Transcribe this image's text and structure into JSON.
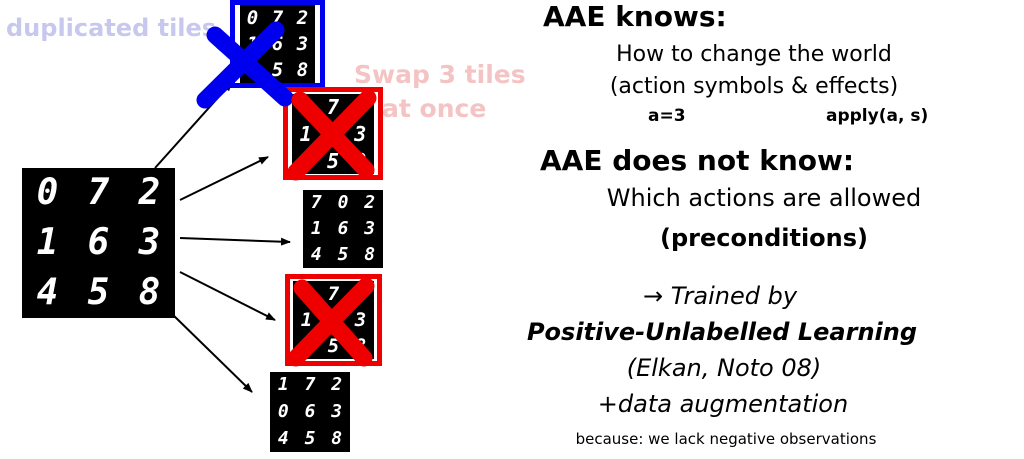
{
  "labels": {
    "duplicated": "duplicated tiles",
    "swap_line1": "Swap 3 tiles",
    "swap_line2": "at once"
  },
  "tiles": {
    "source": [
      "0",
      "7",
      "2",
      "1",
      "6",
      "3",
      "4",
      "5",
      "8"
    ],
    "dup": [
      "0",
      "7",
      "2",
      "1",
      "6",
      "3",
      "4",
      "5",
      "8"
    ],
    "swap": [
      "0",
      "7",
      "2",
      "1",
      "6",
      "3",
      "4",
      "5",
      "8"
    ],
    "valid1": [
      "7",
      "0",
      "2",
      "1",
      "6",
      "3",
      "4",
      "5",
      "8"
    ],
    "invalid2": [
      "0",
      "7",
      "2",
      "1",
      "6",
      "3",
      "4",
      "5",
      "8"
    ],
    "valid2": [
      "1",
      "7",
      "2",
      "0",
      "6",
      "3",
      "4",
      "5",
      "8"
    ]
  },
  "text": {
    "knows_heading": "AAE knows:",
    "knows_line1": "How to change the world",
    "knows_line2": "(action symbols & effects)",
    "action_symbol": "a=3",
    "apply": "apply(a, s)",
    "not_know_heading": "AAE does not know:",
    "not_know_line1": "Which actions are allowed",
    "not_know_line2": "(preconditions)",
    "trained_by": "→ Trained by",
    "pu_learning": "Positive-Unlabelled Learning",
    "citation": "(Elkan, Noto 08)",
    "augmentation": "+data augmentation",
    "because": "because: we lack negative observations"
  },
  "colors": {
    "blue": "#0000ee",
    "red": "#ee0000",
    "faded_blue": "#c8c8ee",
    "faded_red": "#f4c4c4"
  }
}
